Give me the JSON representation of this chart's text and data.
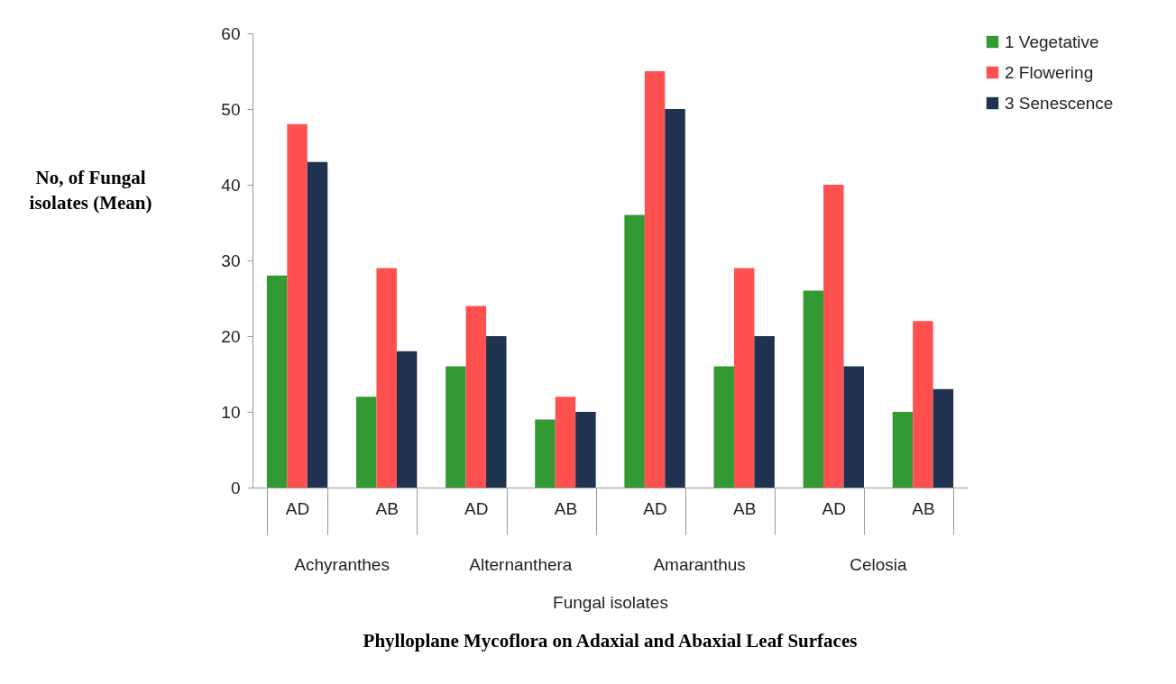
{
  "chart_data": {
    "type": "bar",
    "title": "Phylloplane Mycoflora on Adaxial and Abaxial Leaf Surfaces",
    "xlabel": "Fungal isolates",
    "ylabel": "No, of Fungal isolates (Mean)",
    "categories": [
      "AD",
      "AB",
      "AD",
      "AB",
      "AD",
      "AB",
      "AD",
      "AB"
    ],
    "annotations": [
      "Achyranthes",
      "Alternanthera",
      "Amaranthus",
      "Celosia"
    ],
    "series": [
      {
        "name": "1 Vegetative",
        "color": "#339933",
        "values": [
          28,
          12,
          16,
          9,
          36,
          16,
          26,
          10
        ]
      },
      {
        "name": "2 Flowering",
        "color": "#ff5050",
        "values": [
          48,
          29,
          24,
          12,
          55,
          29,
          40,
          22
        ]
      },
      {
        "name": "3 Senescence",
        "color": "#1f3250",
        "values": [
          43,
          18,
          20,
          10,
          50,
          20,
          16,
          13
        ]
      }
    ],
    "ylim": [
      0,
      60
    ],
    "yticks": [
      0,
      10,
      20,
      30,
      40,
      50,
      60
    ],
    "grid": false,
    "legend": "right"
  }
}
